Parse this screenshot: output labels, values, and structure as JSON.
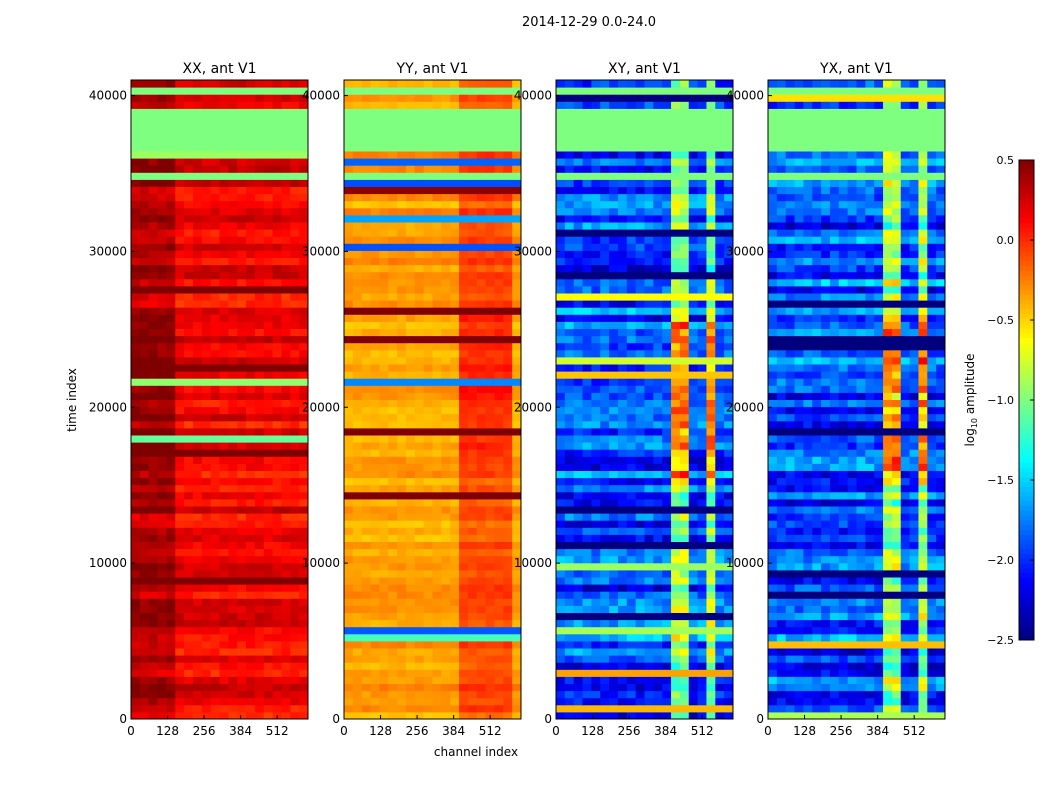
{
  "chart_data": {
    "type": "heatmap",
    "suptitle": "2014-12-29 0.0-24.0",
    "xlabel": "channel index",
    "ylabel": "time index",
    "xlim": [
      0,
      620
    ],
    "ylim": [
      0,
      41000
    ],
    "xticks": [
      "0",
      "128",
      "256",
      "384",
      "512"
    ],
    "xtick_values": [
      0,
      128,
      256,
      384,
      512
    ],
    "yticks": [
      "0",
      "10000",
      "20000",
      "30000",
      "40000"
    ],
    "ytick_values": [
      0,
      10000,
      20000,
      30000,
      40000
    ],
    "colorbar": {
      "label_main": "log",
      "label_sub": "10",
      "label_rest": " amplitude",
      "range": [
        -2.5,
        0.5
      ],
      "ticks": [
        "0.5",
        "0.0",
        "−0.5",
        "−1.0",
        "−1.5",
        "−2.0",
        "−2.5"
      ],
      "tick_values": [
        0.5,
        0,
        -0.5,
        -1,
        -1.5,
        -2,
        -2.5
      ],
      "colormap": "jet"
    },
    "flagged_value": -1.0,
    "flagged_ranges": [
      [
        36500,
        39200
      ],
      [
        34700,
        35200
      ],
      [
        40200,
        40500
      ]
    ],
    "panels": [
      {
        "title": "XX, ant V1",
        "base": 0.15,
        "high_channels": [
          [
            0,
            150
          ]
        ],
        "high_delta": 0.2,
        "high_time": [
          [
            13000,
            26000
          ]
        ],
        "noise": 0.15
      },
      {
        "title": "YY, ant V1",
        "base": -0.35,
        "high_channels": [
          [
            400,
            600
          ]
        ],
        "high_delta": 0.25,
        "high_time": [
          [
            17000,
            26000
          ]
        ],
        "noise": 0.1
      },
      {
        "title": "XY, ant V1",
        "base": -1.9,
        "high_channels": [
          [
            395,
            420
          ],
          [
            445,
            470
          ],
          [
            490,
            510
          ],
          [
            540,
            560
          ]
        ],
        "high_delta": 1.0,
        "high_time": [
          [
            15000,
            26000
          ]
        ],
        "noise": 0.35
      },
      {
        "title": "YX, ant V1",
        "base": -1.9,
        "high_channels": [
          [
            395,
            420
          ],
          [
            445,
            470
          ],
          [
            490,
            510
          ],
          [
            540,
            560
          ]
        ],
        "high_delta": 1.0,
        "high_time": [
          [
            15000,
            26000
          ]
        ],
        "noise": 0.35
      }
    ]
  }
}
